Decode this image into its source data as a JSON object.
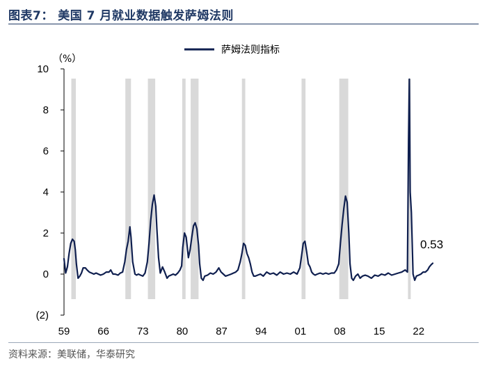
{
  "title": "图表7： 美国 7 月就业数据触发萨姆法则",
  "source": "资料来源：美联储，华泰研究",
  "chart_data": {
    "type": "line",
    "unit_label": "（%）",
    "ylim": [
      -2,
      10
    ],
    "yticks": [
      -2,
      0,
      2,
      4,
      6,
      8,
      10
    ],
    "ytick_labels": [
      "(2)",
      "0",
      "2",
      "4",
      "6",
      "8",
      "10"
    ],
    "xlim": [
      1959.0,
      2024.5
    ],
    "xticks": [
      1959,
      1966,
      1973,
      1980,
      1987,
      1994,
      2001,
      2008,
      2015,
      2022
    ],
    "xtick_labels": [
      "59",
      "66",
      "73",
      "80",
      "87",
      "94",
      "01",
      "08",
      "15",
      "22"
    ],
    "legend": "top-center",
    "grid": false,
    "recessions": [
      [
        1960.3,
        1961.1
      ],
      [
        1969.9,
        1970.9
      ],
      [
        1973.9,
        1975.2
      ],
      [
        1980.0,
        1980.6
      ],
      [
        1981.5,
        1982.9
      ],
      [
        1990.6,
        1991.2
      ],
      [
        2001.2,
        2001.9
      ],
      [
        2007.9,
        2009.5
      ],
      [
        2020.1,
        2020.4
      ]
    ],
    "series": [
      {
        "name": "萨姆法则指标",
        "color": "#0f1f4f",
        "x": [
          1959.0,
          1959.3,
          1959.6,
          1959.9,
          1960.2,
          1960.5,
          1960.8,
          1961.0,
          1961.2,
          1961.5,
          1961.8,
          1962.1,
          1962.4,
          1962.8,
          1963.1,
          1963.5,
          1963.9,
          1964.3,
          1964.7,
          1965.1,
          1965.5,
          1966.0,
          1966.5,
          1967.0,
          1967.3,
          1967.7,
          1968.1,
          1968.6,
          1969.0,
          1969.4,
          1969.8,
          1970.1,
          1970.4,
          1970.7,
          1970.9,
          1971.2,
          1971.6,
          1971.9,
          1972.2,
          1972.6,
          1973.0,
          1973.4,
          1973.8,
          1974.1,
          1974.4,
          1974.7,
          1975.0,
          1975.3,
          1975.5,
          1975.8,
          1976.1,
          1976.5,
          1976.9,
          1977.3,
          1977.6,
          1978.0,
          1978.4,
          1978.8,
          1979.2,
          1979.6,
          1979.9,
          1980.1,
          1980.4,
          1980.7,
          1980.9,
          1981.1,
          1981.4,
          1981.7,
          1982.0,
          1982.3,
          1982.6,
          1982.9,
          1983.1,
          1983.4,
          1983.7,
          1984.0,
          1984.5,
          1985.0,
          1985.5,
          1986.0,
          1986.5,
          1986.9,
          1987.3,
          1987.7,
          1988.2,
          1988.7,
          1989.1,
          1989.5,
          1989.9,
          1990.3,
          1990.6,
          1990.9,
          1991.2,
          1991.5,
          1991.8,
          1992.1,
          1992.4,
          1992.7,
          1993.0,
          1993.4,
          1993.9,
          1994.4,
          1995.0,
          1995.6,
          1996.2,
          1996.8,
          1997.4,
          1998.0,
          1998.6,
          1999.2,
          1999.8,
          2000.4,
          2000.9,
          2001.2,
          2001.5,
          2001.8,
          2002.1,
          2002.4,
          2002.7,
          2003.0,
          2003.3,
          2003.6,
          2004.0,
          2004.5,
          2005.0,
          2005.5,
          2006.0,
          2006.5,
          2007.0,
          2007.4,
          2007.8,
          2008.1,
          2008.4,
          2008.7,
          2009.0,
          2009.3,
          2009.6,
          2009.8,
          2010.1,
          2010.4,
          2010.8,
          2011.2,
          2011.6,
          2012.0,
          2012.5,
          2013.0,
          2013.6,
          2014.2,
          2014.8,
          2015.4,
          2016.0,
          2016.6,
          2017.2,
          2017.8,
          2018.4,
          2019.0,
          2019.6,
          2020.0,
          2020.2,
          2020.35,
          2020.5,
          2020.7,
          2020.9,
          2021.0,
          2021.3,
          2021.6,
          2022.0,
          2022.4,
          2022.8,
          2023.2,
          2023.6,
          2023.9,
          2024.2,
          2024.5
        ],
        "y": [
          0.75,
          0.05,
          0.35,
          1.0,
          1.5,
          1.7,
          1.6,
          1.2,
          0.5,
          -0.2,
          -0.1,
          0.05,
          0.3,
          0.3,
          0.2,
          0.1,
          0.05,
          0.0,
          0.05,
          0.0,
          -0.05,
          0.0,
          0.1,
          0.1,
          0.2,
          0.0,
          0.0,
          -0.05,
          0.05,
          0.1,
          0.6,
          1.2,
          1.6,
          2.3,
          1.8,
          0.6,
          0.0,
          -0.05,
          0.0,
          -0.05,
          -0.1,
          0.05,
          0.6,
          1.5,
          2.6,
          3.4,
          3.85,
          3.3,
          2.2,
          0.8,
          0.05,
          0.35,
          0.1,
          -0.2,
          -0.1,
          -0.05,
          0.0,
          -0.05,
          0.05,
          0.2,
          0.4,
          1.3,
          2.0,
          1.8,
          1.3,
          0.8,
          1.2,
          1.8,
          2.35,
          2.5,
          2.2,
          1.4,
          0.5,
          -0.2,
          -0.3,
          -0.1,
          -0.05,
          0.05,
          0.0,
          0.1,
          0.3,
          0.1,
          0.0,
          -0.1,
          -0.05,
          0.0,
          0.05,
          0.1,
          0.2,
          0.6,
          1.0,
          1.5,
          1.4,
          1.0,
          0.8,
          0.5,
          0.1,
          -0.1,
          -0.1,
          -0.05,
          0.0,
          -0.1,
          0.1,
          0.0,
          0.05,
          -0.05,
          0.1,
          0.0,
          0.05,
          0.0,
          0.1,
          0.0,
          0.3,
          0.9,
          1.5,
          1.6,
          1.1,
          0.5,
          0.35,
          0.1,
          0.0,
          -0.05,
          0.0,
          0.05,
          0.0,
          0.05,
          0.0,
          0.05,
          0.05,
          0.2,
          0.5,
          1.5,
          2.4,
          3.2,
          3.8,
          3.5,
          2.0,
          0.5,
          -0.2,
          -0.3,
          -0.1,
          0.0,
          -0.2,
          -0.1,
          -0.05,
          -0.1,
          -0.2,
          -0.05,
          -0.1,
          0.0,
          -0.05,
          0.05,
          -0.05,
          0.0,
          0.05,
          0.1,
          0.2,
          0.1,
          6.5,
          9.5,
          4.0,
          3.0,
          1.0,
          0.0,
          -0.3,
          -0.1,
          -0.05,
          0.0,
          0.1,
          0.1,
          0.2,
          0.35,
          0.45,
          0.53
        ]
      }
    ],
    "annotations": [
      {
        "text": "0.53",
        "x": 2024.5,
        "y": 0.53
      }
    ]
  }
}
